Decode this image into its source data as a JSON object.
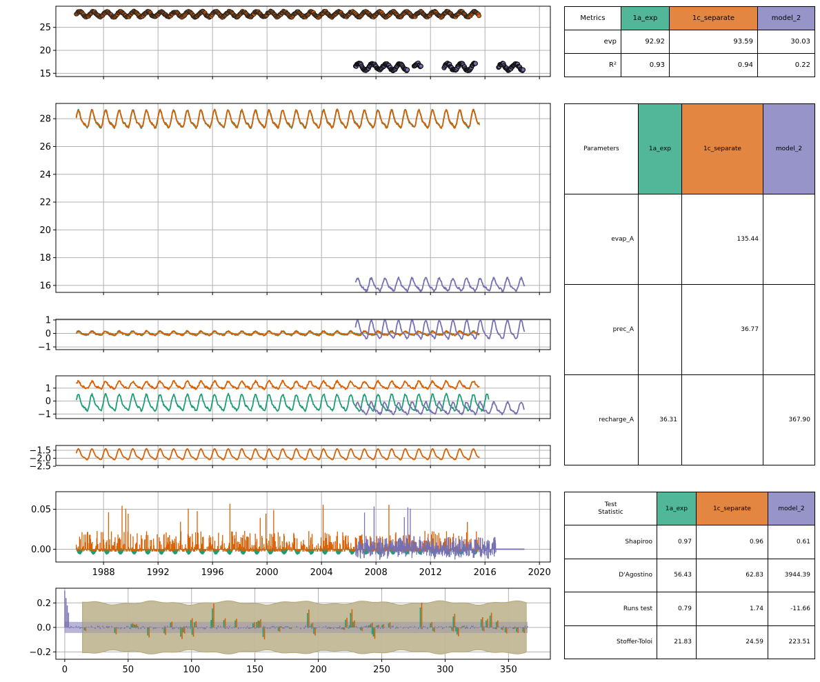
{
  "colors": {
    "green": "#1b9e77",
    "orange": "#d95f02",
    "purple": "#7570b3",
    "hdr_green": "#52b698",
    "hdr_orange": "#e28641",
    "hdr_purple": "#9694c8",
    "band": "#c2b897",
    "band_edge": "#b3a87a",
    "grid": "#b0b0b0"
  },
  "chart_data": [
    {
      "type": "scatter",
      "panel": "observed heads",
      "ylim": [
        14.3,
        29.6
      ],
      "yticks": [
        "15",
        "20",
        "25"
      ],
      "grid": true,
      "series": [
        {
          "color": "orange",
          "x_range": [
            1986.0,
            2015.6
          ],
          "mean": 27.85,
          "amp": 0.55
        },
        {
          "color": "purple",
          "segments": [
            [
              2006.5,
              2010.3
            ],
            [
              2010.8,
              2011.3
            ],
            [
              2013.0,
              2015.3
            ],
            [
              2017.0,
              2018.8
            ]
          ],
          "mean": 16.4,
          "amp": 0.7
        }
      ]
    },
    {
      "type": "line",
      "panel": "simulated heads",
      "ylim": [
        15.5,
        29.1
      ],
      "yticks": [
        "16",
        "18",
        "20",
        "22",
        "24",
        "26",
        "28"
      ],
      "grid": true,
      "series": [
        {
          "color": "green",
          "x_range": [
            1986.0,
            2015.6
          ],
          "mean": 27.9,
          "amp": 0.55
        },
        {
          "color": "orange",
          "x_range": [
            1986.0,
            2015.6
          ],
          "mean": 27.9,
          "amp": 0.55
        },
        {
          "color": "purple",
          "x_range": [
            2006.5,
            2018.9
          ],
          "mean": 16.0,
          "amp": 0.4
        }
      ]
    },
    {
      "type": "line",
      "panel": "residuals",
      "ylim": [
        -1.2,
        1.05
      ],
      "yticks": [
        "1",
        "0",
        "−1"
      ],
      "grid": true,
      "series": [
        {
          "color": "green",
          "x_range": [
            1986.0,
            2015.6
          ],
          "mean": 0.0,
          "amp": 0.12
        },
        {
          "color": "orange",
          "x_range": [
            1986.0,
            2015.6
          ],
          "mean": 0.0,
          "amp": 0.12
        },
        {
          "color": "purple",
          "x_range": [
            2006.5,
            2018.9
          ],
          "mean": 0.2,
          "amp": 0.6
        }
      ]
    },
    {
      "type": "line",
      "panel": "contributions",
      "ylim": [
        -1.35,
        1.95
      ],
      "yticks": [
        "1",
        "0",
        "−1"
      ],
      "grid": true,
      "series": [
        {
          "color": "orange",
          "x_range": [
            1986.0,
            2015.6
          ],
          "mean": 1.2,
          "amp": 0.25
        },
        {
          "color": "green",
          "x_range": [
            1986.0,
            2016.3
          ],
          "mean": -0.2,
          "amp": 0.55
        },
        {
          "color": "purple",
          "x_range": [
            2006.5,
            2018.9
          ],
          "mean": -0.6,
          "amp": 0.4
        }
      ]
    },
    {
      "type": "line",
      "panel": "contribution 2",
      "ylim": [
        -2.45,
        -1.2
      ],
      "yticks": [
        "−1.5",
        "−2.0",
        "−2.5"
      ],
      "grid": true,
      "series": [
        {
          "color": "orange",
          "x_range": [
            1986.0,
            2015.6
          ],
          "mean": -1.8,
          "amp": 0.3
        }
      ]
    },
    {
      "type": "bar",
      "panel": "recharge",
      "ylim": [
        -0.016,
        0.072
      ],
      "yticks": [
        "0.05",
        "0.00"
      ],
      "xlim": [
        1984.5,
        2020.8
      ],
      "xticks": [
        "1988",
        "1992",
        "1996",
        "2000",
        "2004",
        "2008",
        "2012",
        "2016",
        "2020"
      ],
      "grid": true,
      "series": [
        {
          "color": "green",
          "x_range": [
            1986.0,
            2015.6
          ]
        },
        {
          "color": "orange",
          "x_range": [
            1986.0,
            2015.6
          ]
        },
        {
          "color": "purple",
          "x_range": [
            2006.5,
            2018.9
          ]
        }
      ]
    },
    {
      "type": "bar",
      "panel": "autocorrelation",
      "xlim": [
        -7,
        383
      ],
      "xticks": [
        "0",
        "50",
        "100",
        "150",
        "200",
        "250",
        "300",
        "350"
      ],
      "ylim": [
        -0.26,
        0.32
      ],
      "yticks": [
        "0.2",
        "0.0",
        "−0.2"
      ],
      "grid": true,
      "confidence_band": {
        "x_range": [
          14,
          365
        ],
        "upper": 0.2,
        "lower": -0.2
      },
      "inner_band": {
        "x_range": [
          0,
          365
        ],
        "upper": 0.045,
        "lower": -0.045
      }
    }
  ],
  "tables": {
    "metrics": {
      "header": [
        "Metrics",
        "1a_exp",
        "1c_separate",
        "model_2"
      ],
      "rows": [
        [
          "evp",
          "92.92",
          "93.59",
          "30.03"
        ],
        [
          "R²",
          "0.93",
          "0.94",
          "0.22"
        ]
      ]
    },
    "parameters": {
      "header": [
        "Parameters",
        "1a_exp",
        "1c_separate",
        "model_2"
      ],
      "rows": [
        [
          "evap_A",
          "",
          "135.44",
          ""
        ],
        [
          "prec_A",
          "",
          "36.77",
          ""
        ],
        [
          "recharge_A",
          "36.31",
          "",
          "367.90"
        ]
      ]
    },
    "tests": {
      "header": [
        "Test\nStatistic",
        "1a_exp",
        "1c_separate",
        "model_2"
      ],
      "rows": [
        [
          "Shapiroo",
          "0.97",
          "0.96",
          "0.61"
        ],
        [
          "D'Agostino",
          "56.43",
          "62.83",
          "3944.39"
        ],
        [
          "Runs test",
          "0.79",
          "1.74",
          "-11.66"
        ],
        [
          "Stoffer-Toloi",
          "21.83",
          "24.59",
          "223.51"
        ]
      ]
    }
  }
}
